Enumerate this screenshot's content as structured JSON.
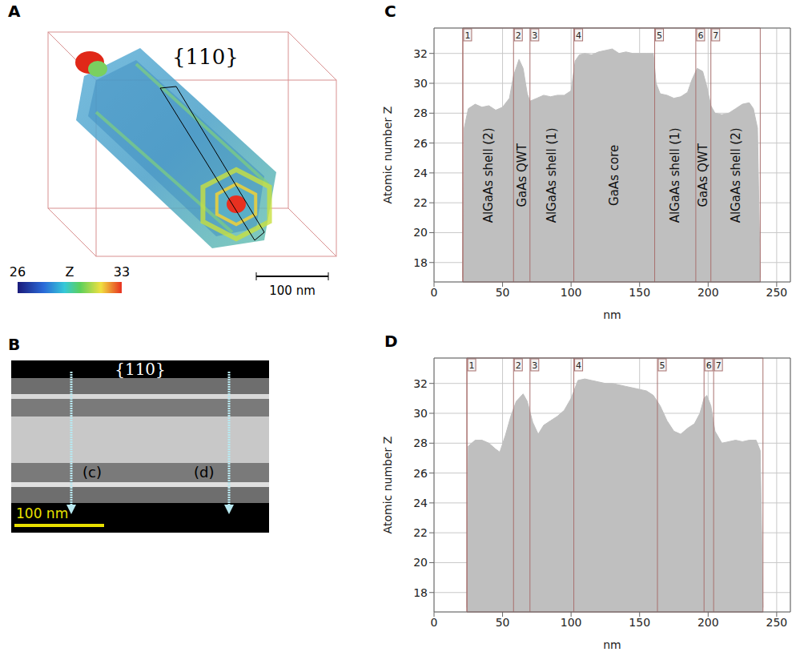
{
  "panels": {
    "A": {
      "letter": "A",
      "label": "{110}",
      "colorbar": {
        "label": "Z",
        "range": [
          26,
          33
        ],
        "ticks": [
          26,
          33
        ]
      },
      "scale_bar": "100 nm"
    },
    "B": {
      "letter": "B",
      "label": "{110}",
      "arrows": [
        "(c)",
        "(d)"
      ],
      "scale_bar": "100 nm"
    }
  },
  "chart_data": [
    {
      "type": "area",
      "letter": "C",
      "xlabel": "nm",
      "ylabel": "Atomic number Z",
      "color": "#bfbfbf",
      "grid": true,
      "xlim": [
        0,
        260
      ],
      "ylim": [
        16.7,
        33.7
      ],
      "xticks": [
        0,
        50,
        100,
        150,
        200,
        250
      ],
      "yticks": [
        18,
        20,
        22,
        24,
        26,
        28,
        30,
        32
      ],
      "x": [
        21,
        22,
        25,
        30,
        35,
        40,
        45,
        50,
        55,
        58,
        62,
        65,
        68,
        70,
        75,
        80,
        85,
        90,
        95,
        100,
        103,
        106,
        110,
        115,
        120,
        125,
        130,
        135,
        140,
        145,
        150,
        155,
        160,
        162,
        165,
        170,
        175,
        180,
        185,
        188,
        192,
        196,
        199,
        202,
        205,
        210,
        215,
        220,
        225,
        230,
        233,
        236,
        238
      ],
      "values": [
        17,
        27,
        28.3,
        28.6,
        28.4,
        28.5,
        28.2,
        28.4,
        29,
        30.5,
        31.6,
        31,
        29.3,
        28.8,
        29,
        29.2,
        29.1,
        29.2,
        29.2,
        29.5,
        31.5,
        31.9,
        32,
        31.9,
        32.1,
        32.2,
        32.3,
        32,
        32.1,
        32,
        32,
        32,
        32,
        30,
        29.3,
        29.2,
        29,
        29.1,
        29.4,
        30.2,
        31,
        30.8,
        29.8,
        28.5,
        28,
        27.9,
        28,
        28.3,
        28.6,
        28.7,
        28.3,
        27,
        17
      ],
      "regions": [
        {
          "label": "1",
          "x": 21,
          "name": "AlGaAs shell (2)"
        },
        {
          "label": "2",
          "x": 58,
          "name": "GaAs QWT"
        },
        {
          "label": "3",
          "x": 70,
          "name": "AlGaAs shell (1)"
        },
        {
          "label": "4",
          "x": 102,
          "name": "GaAs core"
        },
        {
          "label": "5",
          "x": 161,
          "name": "AlGaAs shell (1)"
        },
        {
          "label": "6",
          "x": 191,
          "name": "GaAs QWT"
        },
        {
          "label": "7",
          "x": 202,
          "name": "AlGaAs shell (2)"
        }
      ],
      "region_end": 238
    },
    {
      "type": "area",
      "letter": "D",
      "xlabel": "nm",
      "ylabel": "Atomic number Z",
      "color": "#bfbfbf",
      "grid": true,
      "xlim": [
        0,
        260
      ],
      "ylim": [
        16.7,
        33.7
      ],
      "xticks": [
        0,
        50,
        100,
        150,
        200,
        250
      ],
      "yticks": [
        18,
        20,
        22,
        24,
        26,
        28,
        30,
        32
      ],
      "x": [
        24,
        25,
        30,
        35,
        40,
        45,
        48,
        52,
        56,
        60,
        65,
        68,
        72,
        76,
        80,
        85,
        90,
        95,
        100,
        105,
        110,
        115,
        120,
        125,
        130,
        135,
        140,
        145,
        150,
        155,
        160,
        165,
        170,
        175,
        180,
        185,
        190,
        194,
        197,
        199,
        202,
        205,
        210,
        215,
        220,
        225,
        230,
        235,
        238,
        240
      ],
      "values": [
        17,
        27.8,
        28.2,
        28.2,
        28,
        27.6,
        27.4,
        28.5,
        29.8,
        30.8,
        31.3,
        30.8,
        29.4,
        28.6,
        29.2,
        29.5,
        29.8,
        30.2,
        31,
        32.2,
        32.3,
        32.2,
        32.1,
        32,
        32,
        31.9,
        31.8,
        31.7,
        31.6,
        31.5,
        31.2,
        30.5,
        29.5,
        28.8,
        28.6,
        29,
        29.3,
        30,
        31,
        31.2,
        30.5,
        28.8,
        28,
        28.1,
        28.2,
        28.1,
        28.2,
        28.2,
        27.5,
        17
      ],
      "regions": [
        {
          "label": "1",
          "x": 24
        },
        {
          "label": "2",
          "x": 58
        },
        {
          "label": "3",
          "x": 70
        },
        {
          "label": "4",
          "x": 102
        },
        {
          "label": "5",
          "x": 163
        },
        {
          "label": "6",
          "x": 197
        },
        {
          "label": "7",
          "x": 204
        }
      ],
      "region_end": 240
    }
  ]
}
